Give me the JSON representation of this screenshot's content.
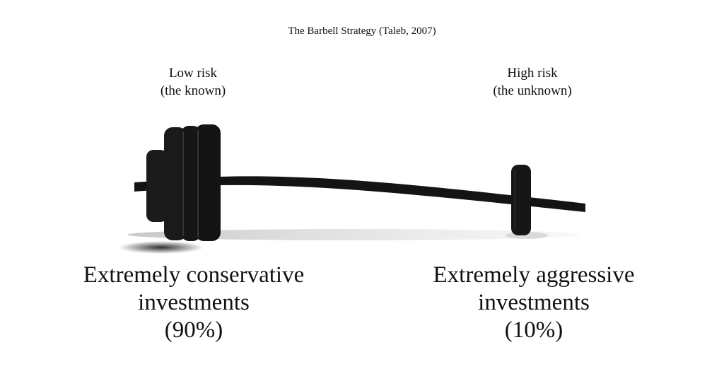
{
  "title": "The Barbell Strategy (Taleb, 2007)",
  "left": {
    "risk": "Low risk",
    "risk_note": "(the known)",
    "description_line1": "Extremely conservative",
    "description_line2": "investments",
    "share": "(90%)"
  },
  "right": {
    "risk": "High risk",
    "risk_note": "(the unknown)",
    "description_line1": "Extremely aggressive",
    "description_line2": "investments",
    "share": "(10%)"
  },
  "colors": {
    "barbell": "#141414",
    "shadow": "#c8c8c8"
  }
}
